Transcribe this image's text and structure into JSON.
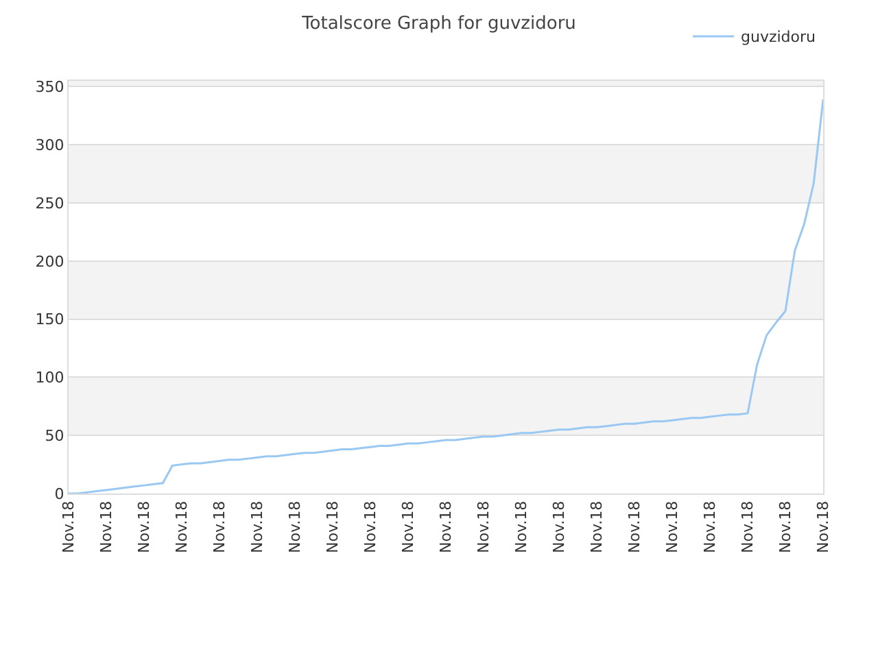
{
  "chart_data": {
    "type": "line",
    "title": "Totalscore Graph for guvzidoru",
    "categories": [
      "Nov.18",
      null,
      null,
      null,
      "Nov.18",
      null,
      null,
      null,
      "Nov.18",
      null,
      null,
      null,
      "Nov.18",
      null,
      null,
      null,
      "Nov.18",
      null,
      null,
      null,
      "Nov.18",
      null,
      null,
      null,
      "Nov.18",
      null,
      null,
      null,
      "Nov.18",
      null,
      null,
      null,
      "Nov.18",
      null,
      null,
      null,
      "Nov.18",
      null,
      null,
      null,
      "Nov.18",
      null,
      null,
      null,
      "Nov.18",
      null,
      null,
      null,
      "Nov.18",
      null,
      null,
      null,
      "Nov.18",
      null,
      null,
      null,
      "Nov.18",
      null,
      null,
      null,
      "Nov.18",
      null,
      null,
      null,
      "Nov.18",
      null,
      null,
      null,
      "Nov.18",
      null,
      null,
      null,
      "Nov.18",
      null,
      null,
      null,
      "Nov.18",
      null,
      null,
      null,
      "Nov.18"
    ],
    "ylim": [
      0,
      355
    ],
    "yticks": [
      0,
      50,
      100,
      150,
      200,
      250,
      300,
      350
    ],
    "series": [
      {
        "name": "guvzidoru",
        "color": "#99c8f2",
        "values": [
          0,
          0,
          1,
          2,
          3,
          4,
          5,
          6,
          7,
          8,
          9,
          24,
          25,
          26,
          26,
          27,
          28,
          29,
          29,
          30,
          31,
          32,
          32,
          33,
          34,
          35,
          35,
          36,
          37,
          38,
          38,
          39,
          40,
          41,
          41,
          42,
          43,
          43,
          44,
          45,
          46,
          46,
          47,
          48,
          49,
          49,
          50,
          51,
          52,
          52,
          53,
          54,
          55,
          55,
          56,
          57,
          57,
          58,
          59,
          60,
          60,
          61,
          62,
          62,
          63,
          64,
          65,
          65,
          66,
          67,
          68,
          68,
          69,
          111,
          136,
          147,
          157,
          209,
          232,
          267,
          339
        ]
      }
    ],
    "bands": [
      {
        "axis": "y",
        "from": 50,
        "to": 100,
        "color": "#f3f3f3"
      },
      {
        "axis": "y",
        "from": 150,
        "to": 200,
        "color": "#f3f3f3"
      },
      {
        "axis": "y",
        "from": 250,
        "to": 300,
        "color": "#f3f3f3"
      },
      {
        "axis": "y",
        "from": 350,
        "to": 355,
        "color": "#f3f3f3"
      }
    ],
    "grid": "y",
    "legend": "top right",
    "marker": "none",
    "line_style": "solid"
  }
}
